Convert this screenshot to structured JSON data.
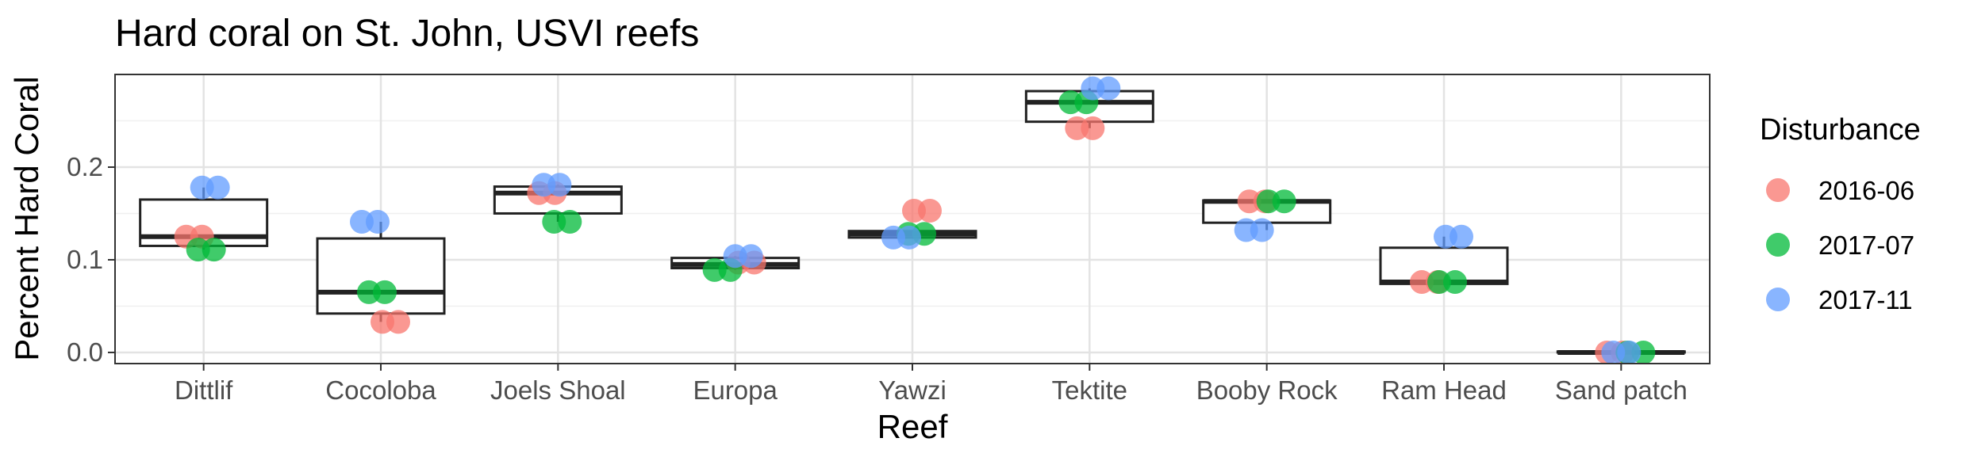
{
  "chart_data": {
    "type": "box",
    "title": "Hard coral on St. John, USVI reefs",
    "xlabel": "Reef",
    "ylabel": "Percent Hard Coral",
    "ylim": [
      -0.012,
      0.3
    ],
    "yticks": [
      0.0,
      0.1,
      0.2
    ],
    "ytick_labels": [
      "0.0",
      "0.1",
      "0.2"
    ],
    "grid": true,
    "legend_position": "right",
    "legend_title": "Disturbance",
    "categories": [
      "Dittlif",
      "Cocoloba",
      "Joels Shoal",
      "Europa",
      "Yawzi",
      "Tektite",
      "Booby Rock",
      "Ram Head",
      "Sand patch"
    ],
    "series": [
      {
        "name": "2016-06",
        "color": "#F8766D",
        "values": [
          0.125,
          0.033,
          0.172,
          0.097,
          0.153,
          0.242,
          0.163,
          0.076,
          0.0
        ]
      },
      {
        "name": "2017-07",
        "color": "#00BA38",
        "values": [
          0.111,
          0.065,
          0.141,
          0.089,
          0.128,
          0.27,
          0.163,
          0.076,
          0.0
        ]
      },
      {
        "name": "2017-11",
        "color": "#619CFF",
        "values": [
          0.178,
          0.141,
          0.181,
          0.104,
          0.124,
          0.285,
          0.132,
          0.125,
          0.0
        ]
      }
    ],
    "boxes": [
      {
        "q1": 0.115,
        "median": 0.125,
        "q3": 0.165,
        "whisker_low": 0.111,
        "whisker_high": 0.178
      },
      {
        "q1": 0.042,
        "median": 0.065,
        "q3": 0.123,
        "whisker_low": 0.033,
        "whisker_high": 0.141
      },
      {
        "q1": 0.15,
        "median": 0.172,
        "q3": 0.179,
        "whisker_low": 0.141,
        "whisker_high": 0.181
      },
      {
        "q1": 0.091,
        "median": 0.095,
        "q3": 0.102,
        "whisker_low": 0.089,
        "whisker_high": 0.104
      },
      {
        "q1": 0.124,
        "median": 0.128,
        "q3": 0.131,
        "whisker_low": 0.124,
        "whisker_high": 0.131
      },
      {
        "q1": 0.249,
        "median": 0.27,
        "q3": 0.282,
        "whisker_low": 0.242,
        "whisker_high": 0.285
      },
      {
        "q1": 0.14,
        "median": 0.163,
        "q3": 0.164,
        "whisker_low": 0.132,
        "whisker_high": 0.164
      },
      {
        "q1": 0.074,
        "median": 0.076,
        "q3": 0.113,
        "whisker_low": 0.074,
        "whisker_high": 0.125
      },
      {
        "q1": 0.0,
        "median": 0.0,
        "q3": 0.001,
        "whisker_low": 0.0,
        "whisker_high": 0.001
      }
    ]
  }
}
